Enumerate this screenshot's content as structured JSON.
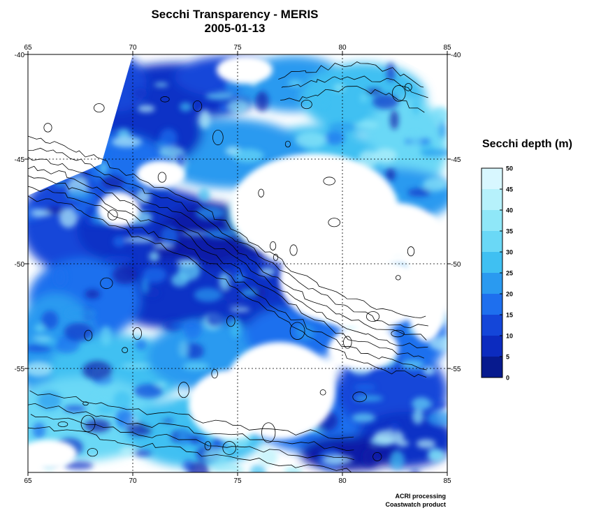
{
  "title": "Secchi Transparency - MERIS",
  "subtitle": "2005-01-13",
  "map": {
    "lon_range": [
      65,
      85
    ],
    "lat_range": [
      -40,
      -60
    ],
    "lon_ticks": [
      "65",
      "70",
      "75",
      "80",
      "85"
    ],
    "lat_ticks": [
      "-40",
      "-45",
      "-50",
      "-55"
    ],
    "grid": "dotted"
  },
  "legend": {
    "title": "Secchi depth (m)",
    "labels": [
      "50",
      "45",
      "40",
      "35",
      "30",
      "25",
      "20",
      "15",
      "10",
      "5",
      "0"
    ],
    "colors": [
      "#f2feff",
      "#d8f7ff",
      "#b6f1fb",
      "#8fe7f8",
      "#6ad8f6",
      "#3fc0f2",
      "#2a9af0",
      "#1e6fee",
      "#1446d9",
      "#0c2bbf",
      "#071a8e"
    ]
  },
  "credits": {
    "line1": "ACRI processing",
    "line2": "Coastwatch product"
  }
}
